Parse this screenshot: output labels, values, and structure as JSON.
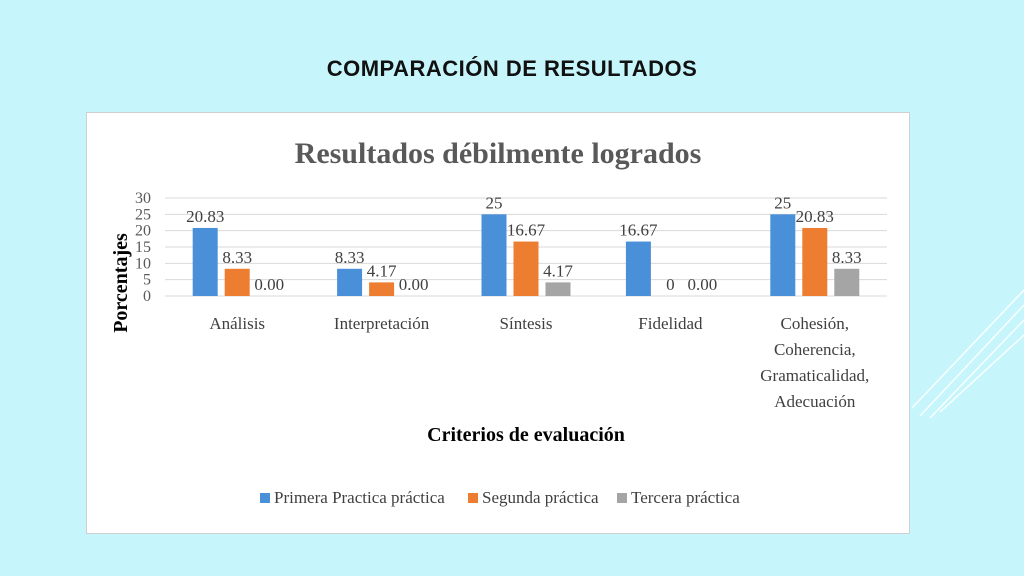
{
  "slide": {
    "title": "COMPARACIÓN  DE RESULTADOS"
  },
  "chart_data": {
    "type": "bar",
    "title": "Resultados débilmente logrados",
    "xlabel": "Criterios de evaluación",
    "ylabel": "Porcentajes",
    "ylim": [
      0,
      30
    ],
    "yticks": [
      "0",
      "5",
      "10",
      "15",
      "20",
      "25",
      "30"
    ],
    "grid": true,
    "legend_position": "bottom",
    "categories": [
      [
        "Análisis"
      ],
      [
        "Interpretación"
      ],
      [
        "Síntesis"
      ],
      [
        "Fidelidad"
      ],
      [
        "Cohesión,",
        "Coherencia,",
        "Gramaticalidad,",
        "Adecuación"
      ]
    ],
    "series": [
      {
        "name": "Primera Practica  práctica",
        "color": "#4a90d9",
        "values": [
          20.83,
          8.33,
          25,
          16.67,
          25
        ],
        "labels": [
          "20.83",
          "8.33",
          "25",
          "16.67",
          "25"
        ]
      },
      {
        "name": "Segunda práctica",
        "color": "#ed7d31",
        "values": [
          8.33,
          4.17,
          16.67,
          0,
          20.83
        ],
        "labels": [
          "8.33",
          "4.17",
          "16.67",
          "0",
          "20.83"
        ]
      },
      {
        "name": "Tercera práctica",
        "color": "#a5a5a5",
        "values": [
          0,
          0,
          4.17,
          0,
          8.33
        ],
        "labels": [
          "0.00",
          "0.00",
          "4.17",
          "0.00",
          "8.33"
        ]
      }
    ]
  }
}
